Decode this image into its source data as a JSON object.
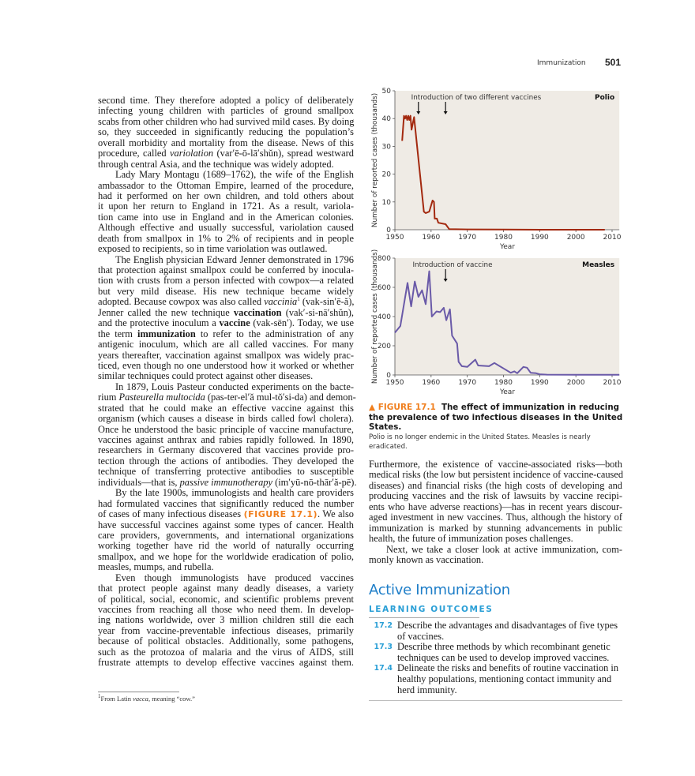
{
  "header": {
    "section": "Immunization",
    "page_number": "501"
  },
  "left_column": [
    {
      "t": "second time. They therefore adopted a policy of deliberately"
    },
    {
      "t": "infecting young children with particles of ground smallpox"
    },
    {
      "t": "scabs from other children who had survived mild cases. By doing"
    },
    {
      "t": "so, they succeeded in significantly reducing the population’s"
    },
    {
      "t": "overall morbidity and mortality from the disease. News of this"
    },
    {
      "s": [
        [
          "procedure, called ",
          ""
        ],
        [
          "variolation",
          "i"
        ],
        [
          " (var′ē-ō-lā′shŭn), spread westward",
          ""
        ]
      ]
    },
    {
      "t": "through central Asia, and the technique was widely adopted.",
      "last": true
    },
    {
      "t": "Lady Mary Montagu (1689–1762), the wife of the English",
      "ind": true
    },
    {
      "t": "ambassador to the Ottoman Empire, learned of the procedure,"
    },
    {
      "t": "had it performed on her own children, and told others about"
    },
    {
      "t": "it upon her return to England in 1721. As a result, variola-"
    },
    {
      "t": "tion came into use in England and in the American colonies."
    },
    {
      "t": "Although effective and usually successful, variolation caused"
    },
    {
      "t": "death from smallpox in 1% to 2% of recipients and in people"
    },
    {
      "t": "exposed to recipients, so in time variolation was outlawed.",
      "last": true
    },
    {
      "t": "The English physician Edward Jenner demonstrated in 1796",
      "ind": true
    },
    {
      "t": "that protection against smallpox could be conferred by inocula-"
    },
    {
      "t": "tion with crusts from a person infected with cowpox—a related"
    },
    {
      "t": "but very mild disease. His new technique became widely"
    },
    {
      "s": [
        [
          "adopted. Because cowpox was also called ",
          ""
        ],
        [
          "vaccinia",
          "i"
        ],
        [
          "1",
          "sup"
        ],
        [
          " (vak-sin′ē-ă),",
          ""
        ]
      ]
    },
    {
      "s": [
        [
          "Jenner called the new technique ",
          ""
        ],
        [
          "vaccination",
          "b"
        ],
        [
          " (vak′-si-nā′shŭn),",
          ""
        ]
      ]
    },
    {
      "s": [
        [
          "and the protective inoculum a ",
          ""
        ],
        [
          "vaccine",
          "b"
        ],
        [
          " (vak-sēn′). Today, we use",
          ""
        ]
      ]
    },
    {
      "s": [
        [
          "the term ",
          ""
        ],
        [
          "immunization",
          "b"
        ],
        [
          " to refer to the administration of any",
          ""
        ]
      ]
    },
    {
      "t": "antigenic inoculum, which are all called vaccines. For many"
    },
    {
      "t": "years thereafter, vaccination against smallpox was widely prac-"
    },
    {
      "t": "ticed, even though no one understood how it worked or whether"
    },
    {
      "t": "similar techniques could protect against other diseases.",
      "last": true
    },
    {
      "t": "In 1879, Louis Pasteur conducted experiments on the bacte-",
      "ind": true
    },
    {
      "s": [
        [
          "rium ",
          ""
        ],
        [
          "Pasteurella multocida",
          "i"
        ],
        [
          " (pas-ter-el′ă mul-tŏ′si-da) and demon-",
          ""
        ]
      ]
    },
    {
      "t": "strated that he could make an effective vaccine against this"
    },
    {
      "t": "organism (which causes a disease in birds called fowl cholera)."
    },
    {
      "t": "Once he understood the basic principle of vaccine manufacture,"
    },
    {
      "t": "vaccines against anthrax and rabies rapidly followed. In 1890,"
    },
    {
      "t": "researchers in Germany discovered that vaccines provide pro-"
    },
    {
      "t": "tection through the actions of antibodies. They developed the"
    },
    {
      "t": "technique of transferring protective antibodies to susceptible"
    },
    {
      "s": [
        [
          "individuals—that is, ",
          ""
        ],
        [
          "passive immunotherapy",
          "i"
        ],
        [
          " (im′yū-nō-thār′ă-pē).",
          ""
        ]
      ]
    },
    {
      "t": "By the late 1900s, immunologists and health care providers",
      "ind": true
    },
    {
      "t": "had formulated vaccines that significantly reduced the number"
    },
    {
      "s": [
        [
          "of cases of many infectious diseases ",
          ""
        ],
        [
          "(FIGURE 17.1)",
          "fig"
        ],
        [
          ". We also",
          ""
        ]
      ]
    },
    {
      "t": "have successful vaccines against some types of cancer. Health"
    },
    {
      "t": "care providers, governments, and international organizations"
    },
    {
      "t": "working together have rid the world of naturally occurring"
    },
    {
      "t": "smallpox, and we hope for the worldwide eradication of polio,"
    },
    {
      "t": "measles, mumps, and rubella.",
      "last": true
    },
    {
      "t": "Even though immunologists have produced vaccines",
      "ind": true
    },
    {
      "t": "that protect people against many deadly diseases, a variety"
    },
    {
      "t": "of political, social, economic, and scientific problems prevent"
    },
    {
      "t": "vaccines from reaching all those who need them. In develop-"
    },
    {
      "t": "ing nations worldwide, over 3 million children still die each"
    },
    {
      "t": "year from vaccine-preventable infectious diseases, primarily"
    },
    {
      "t": "because of political obstacles. Additionally, some pathogens,"
    },
    {
      "t": "such as the protozoa of malaria and the virus of AIDS, still"
    },
    {
      "t": "frustrate attempts to develop effective vaccines against them."
    }
  ],
  "right_column": [
    {
      "t": "Furthermore, the existence of vaccine-associated risks—both"
    },
    {
      "t": "medical risks (the low but persistent incidence of vaccine-caused"
    },
    {
      "t": "diseases) and financial risks (the high costs of developing and"
    },
    {
      "t": "producing vaccines and the risk of lawsuits by vaccine recipi-"
    },
    {
      "t": "ents who have adverse reactions)—has in recent years discour-"
    },
    {
      "t": "aged investment in new vaccines. Thus, although the history of"
    },
    {
      "t": "immunization is marked by stunning advancements in public"
    },
    {
      "t": "health, the future of immunization poses challenges.",
      "last": true
    },
    {
      "t": "Next, we take a closer look at active immunization, com-",
      "ind": true
    },
    {
      "t": "monly known as vaccination.",
      "last": true
    }
  ],
  "footnote": {
    "pre": "1",
    "text": "From Latin ",
    "italic": "vacca",
    "post": ", meaning “cow.”"
  },
  "figure": {
    "label": "▲ FIGURE 17.1",
    "title": "The effect of immunization in reducing the prevalence of two infectious diseases in the United States.",
    "subtitle": "Polio is no longer endemic in the United States. Measles is nearly eradicated.",
    "colors": {
      "polio": "#a3290f",
      "measles": "#6a5aa8",
      "background": "#efebe5",
      "accent": "#f07f1e"
    }
  },
  "chart_data": [
    {
      "type": "line",
      "title": "Polio",
      "xlabel": "Year",
      "ylabel": "Number of reported cases (thousands)",
      "xlim": [
        1950,
        2012
      ],
      "ylim": [
        0,
        50
      ],
      "xticks": [
        1950,
        1960,
        1970,
        1980,
        1990,
        2000,
        2010
      ],
      "yticks": [
        0,
        10,
        20,
        30,
        40,
        50
      ],
      "annotation": {
        "text": "Introduction of two different vaccines",
        "arrows_at": [
          1956.5,
          1964
        ]
      },
      "x": [
        1952,
        1952.5,
        1952.8,
        1953.1,
        1953.4,
        1953.7,
        1954,
        1954.3,
        1954.6,
        1955.3,
        1958,
        1958.5,
        1959.5,
        1960.4,
        1960.8,
        1961,
        1961.6,
        1962,
        1964,
        1965,
        1970,
        1980,
        1990,
        2000,
        2008
      ],
      "y": [
        32,
        41,
        40,
        41,
        39.5,
        41,
        39.5,
        41,
        36,
        40.5,
        6.5,
        6,
        6.5,
        10.5,
        10,
        4,
        4,
        2.5,
        2,
        0.2,
        0.1,
        0.05,
        0.01,
        0,
        0
      ]
    },
    {
      "type": "line",
      "title": "Measles",
      "xlabel": "Year",
      "ylabel": "Number of reported cases (thousands)",
      "xlim": [
        1950,
        2012
      ],
      "ylim": [
        0,
        800
      ],
      "xticks": [
        1950,
        1960,
        1970,
        1980,
        1990,
        2000,
        2010
      ],
      "yticks": [
        0,
        200,
        400,
        600,
        800
      ],
      "annotation": {
        "text": "Introduction of vaccine",
        "arrows_at": [
          1964
        ]
      },
      "x": [
        1950,
        1951.5,
        1953.5,
        1954.5,
        1955.5,
        1956.5,
        1957.5,
        1958.5,
        1959.5,
        1960.2,
        1961.5,
        1962.5,
        1963.5,
        1964.2,
        1965.2,
        1965.8,
        1967.2,
        1967.6,
        1968.5,
        1970,
        1972.2,
        1973,
        1976,
        1977.5,
        1980,
        1982,
        1983,
        1983.8,
        1985.5,
        1986.5,
        1987.5,
        1989,
        1990,
        1992,
        2000,
        2012
      ],
      "y": [
        290,
        335,
        630,
        470,
        640,
        535,
        580,
        485,
        710,
        400,
        435,
        430,
        460,
        375,
        450,
        270,
        215,
        90,
        60,
        55,
        105,
        65,
        60,
        82,
        45,
        15,
        25,
        12,
        55,
        50,
        15,
        12,
        5,
        2,
        1,
        1
      ]
    }
  ],
  "active_immunization": {
    "heading": "Active Immunization",
    "outcomes_label": "LEARNING OUTCOMES",
    "outcomes": [
      {
        "num": "17.2",
        "text": "Describe the advantages and disadvantages of five types of vaccines."
      },
      {
        "num": "17.3",
        "text": "Describe three methods by which recombinant genetic techniques can be used to develop improved vaccines."
      },
      {
        "num": "17.4",
        "text": "Delineate the risks and benefits of routine vaccination in healthy populations, mentioning contact immunity and herd immunity."
      }
    ]
  }
}
